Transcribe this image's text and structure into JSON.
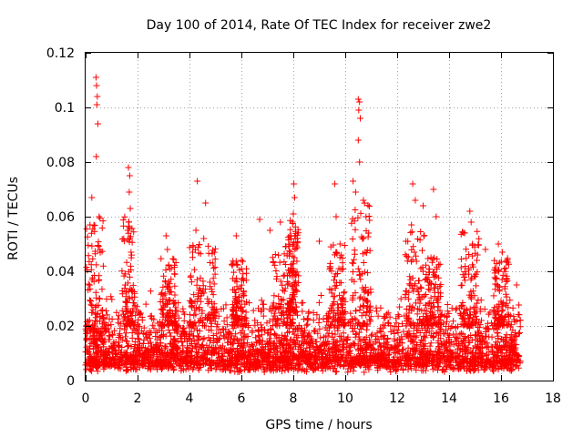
{
  "chart_data": {
    "type": "scatter",
    "title": "Day 100 of 2014, Rate Of TEC Index for receiver zwe2",
    "xlabel": "GPS time / hours",
    "ylabel": "ROTI / TECUs",
    "xlim": [
      0,
      18
    ],
    "ylim": [
      0,
      0.12
    ],
    "x_ticks": [
      0,
      2,
      4,
      6,
      8,
      10,
      12,
      14,
      16,
      18
    ],
    "x_tick_labels": [
      "0",
      "2",
      "4",
      "6",
      "8",
      "10",
      "12",
      "14",
      "16",
      "18"
    ],
    "y_ticks": [
      0,
      0.02,
      0.04,
      0.06,
      0.08,
      0.1,
      0.12
    ],
    "y_tick_labels": [
      "0",
      "0.02",
      "0.04",
      "0.06",
      "0.08",
      "0.1",
      "0.12"
    ],
    "grid": true,
    "marker": "+",
    "marker_color": "#ff0000",
    "series": [
      {
        "name": "ROTI",
        "x_range": [
          0,
          16.75
        ],
        "baseline_band": [
          0.003,
          0.03
        ],
        "notable_points": [
          {
            "x": 0.4,
            "y": 0.111
          },
          {
            "x": 0.42,
            "y": 0.108
          },
          {
            "x": 0.45,
            "y": 0.104
          },
          {
            "x": 0.43,
            "y": 0.101
          },
          {
            "x": 0.47,
            "y": 0.094
          },
          {
            "x": 0.41,
            "y": 0.082
          },
          {
            "x": 0.24,
            "y": 0.067
          },
          {
            "x": 0.52,
            "y": 0.06
          },
          {
            "x": 0.17,
            "y": 0.057
          },
          {
            "x": 1.65,
            "y": 0.078
          },
          {
            "x": 1.7,
            "y": 0.075
          },
          {
            "x": 1.68,
            "y": 0.069
          },
          {
            "x": 1.72,
            "y": 0.063
          },
          {
            "x": 1.62,
            "y": 0.055
          },
          {
            "x": 1.75,
            "y": 0.047
          },
          {
            "x": 3.1,
            "y": 0.053
          },
          {
            "x": 3.15,
            "y": 0.048
          },
          {
            "x": 3.3,
            "y": 0.041
          },
          {
            "x": 4.3,
            "y": 0.073
          },
          {
            "x": 4.25,
            "y": 0.055
          },
          {
            "x": 4.62,
            "y": 0.065
          },
          {
            "x": 4.55,
            "y": 0.052
          },
          {
            "x": 4.9,
            "y": 0.043
          },
          {
            "x": 5.8,
            "y": 0.053
          },
          {
            "x": 6.0,
            "y": 0.044
          },
          {
            "x": 6.7,
            "y": 0.059
          },
          {
            "x": 7.1,
            "y": 0.055
          },
          {
            "x": 7.5,
            "y": 0.058
          },
          {
            "x": 7.7,
            "y": 0.049
          },
          {
            "x": 8.02,
            "y": 0.072
          },
          {
            "x": 8.05,
            "y": 0.067
          },
          {
            "x": 8.0,
            "y": 0.061
          },
          {
            "x": 8.1,
            "y": 0.052
          },
          {
            "x": 9.0,
            "y": 0.051
          },
          {
            "x": 9.6,
            "y": 0.072
          },
          {
            "x": 9.65,
            "y": 0.06
          },
          {
            "x": 9.8,
            "y": 0.05
          },
          {
            "x": 10.5,
            "y": 0.103
          },
          {
            "x": 10.55,
            "y": 0.102
          },
          {
            "x": 10.52,
            "y": 0.099
          },
          {
            "x": 10.58,
            "y": 0.096
          },
          {
            "x": 10.5,
            "y": 0.088
          },
          {
            "x": 10.55,
            "y": 0.08
          },
          {
            "x": 10.3,
            "y": 0.073
          },
          {
            "x": 10.4,
            "y": 0.069
          },
          {
            "x": 10.7,
            "y": 0.066
          },
          {
            "x": 10.8,
            "y": 0.06
          },
          {
            "x": 10.9,
            "y": 0.054
          },
          {
            "x": 12.6,
            "y": 0.072
          },
          {
            "x": 12.7,
            "y": 0.066
          },
          {
            "x": 12.55,
            "y": 0.057
          },
          {
            "x": 13.0,
            "y": 0.064
          },
          {
            "x": 13.4,
            "y": 0.07
          },
          {
            "x": 13.5,
            "y": 0.06
          },
          {
            "x": 13.3,
            "y": 0.045
          },
          {
            "x": 14.6,
            "y": 0.054
          },
          {
            "x": 14.8,
            "y": 0.062
          },
          {
            "x": 14.85,
            "y": 0.058
          },
          {
            "x": 14.9,
            "y": 0.05
          },
          {
            "x": 15.4,
            "y": 0.048
          },
          {
            "x": 15.9,
            "y": 0.05
          },
          {
            "x": 16.05,
            "y": 0.047
          },
          {
            "x": 16.6,
            "y": 0.035
          }
        ],
        "peak_groups": [
          {
            "center": 0.35,
            "width": 0.35,
            "low": 0.015,
            "high": 0.06
          },
          {
            "center": 1.65,
            "width": 0.25,
            "low": 0.02,
            "high": 0.06
          },
          {
            "center": 3.2,
            "width": 0.3,
            "low": 0.02,
            "high": 0.045
          },
          {
            "center": 4.5,
            "width": 0.5,
            "low": 0.02,
            "high": 0.05
          },
          {
            "center": 5.9,
            "width": 0.3,
            "low": 0.02,
            "high": 0.044
          },
          {
            "center": 7.6,
            "width": 0.4,
            "low": 0.02,
            "high": 0.05
          },
          {
            "center": 8.0,
            "width": 0.2,
            "low": 0.025,
            "high": 0.06
          },
          {
            "center": 9.7,
            "width": 0.3,
            "low": 0.02,
            "high": 0.05
          },
          {
            "center": 10.6,
            "width": 0.4,
            "low": 0.02,
            "high": 0.065
          },
          {
            "center": 12.7,
            "width": 0.4,
            "low": 0.02,
            "high": 0.055
          },
          {
            "center": 13.4,
            "width": 0.3,
            "low": 0.02,
            "high": 0.045
          },
          {
            "center": 14.8,
            "width": 0.35,
            "low": 0.02,
            "high": 0.055
          },
          {
            "center": 16.0,
            "width": 0.3,
            "low": 0.02,
            "high": 0.045
          }
        ]
      }
    ]
  }
}
